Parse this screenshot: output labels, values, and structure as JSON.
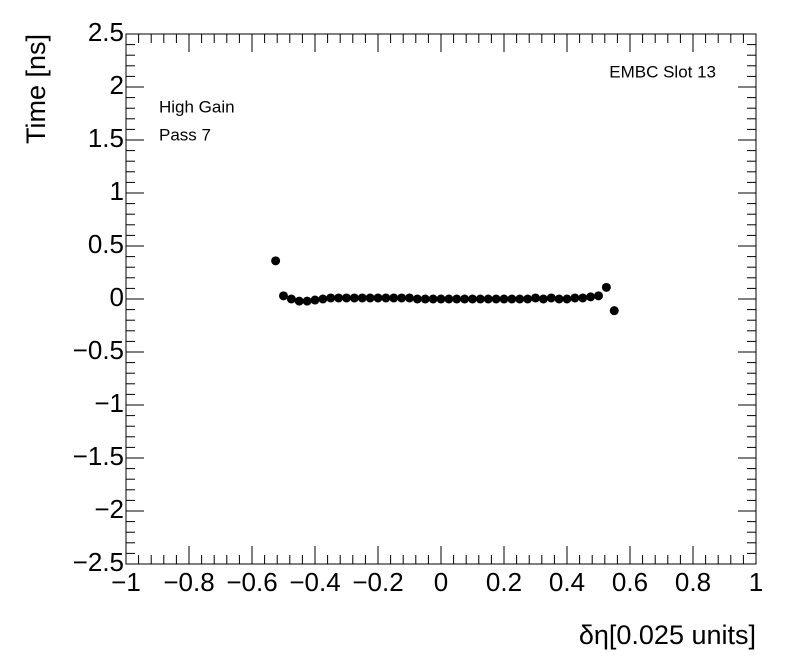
{
  "chart_data": {
    "type": "scatter",
    "x_label": "δη[0.025 units]",
    "y_label": "Time [ns]",
    "annotations": [
      "EMBC Slot 13",
      "High Gain",
      "Pass 7"
    ],
    "xlim": [
      -1,
      1
    ],
    "ylim": [
      -2.5,
      2.5
    ],
    "xticks": [
      {
        "value": -1,
        "label": "−1"
      },
      {
        "value": -0.8,
        "label": "−0.8"
      },
      {
        "value": -0.6,
        "label": "−0.6"
      },
      {
        "value": -0.4,
        "label": "−0.4"
      },
      {
        "value": -0.2,
        "label": "−0.2"
      },
      0,
      0.2,
      0.4,
      0.6,
      0.8,
      1
    ],
    "yticks": [
      {
        "value": -2.5,
        "label": "−2.5"
      },
      {
        "value": -2,
        "label": "−2"
      },
      {
        "value": -1.5,
        "label": "−1.5"
      },
      {
        "value": -1,
        "label": "−1"
      },
      {
        "value": -0.5,
        "label": "−0.5"
      },
      0,
      0.5,
      1,
      1.5,
      2,
      2.5
    ],
    "color": "#000000",
    "series": [
      {
        "x": [
          -0.525,
          -0.5,
          -0.475,
          -0.45,
          -0.425,
          -0.4,
          -0.375,
          -0.35,
          -0.325,
          -0.3,
          -0.275,
          -0.25,
          -0.225,
          -0.2,
          -0.175,
          -0.15,
          -0.125,
          -0.1,
          -0.075,
          -0.05,
          -0.025,
          0,
          0.025,
          0.05,
          0.075,
          0.1,
          0.125,
          0.15,
          0.175,
          0.2,
          0.225,
          0.25,
          0.275,
          0.3,
          0.325,
          0.35,
          0.375,
          0.4,
          0.425,
          0.45,
          0.475,
          0.5,
          0.525,
          0.55
        ],
        "values": [
          0.36,
          0.03,
          0.0,
          -0.02,
          -0.02,
          -0.01,
          0.0,
          0.01,
          0.01,
          0.01,
          0.01,
          0.01,
          0.01,
          0.01,
          0.01,
          0.01,
          0.01,
          0.01,
          0.0,
          0.0,
          0.0,
          0.0,
          0.0,
          0.0,
          0.0,
          0.0,
          0.0,
          0.0,
          0.0,
          0.0,
          0.0,
          0.0,
          0.0,
          0.01,
          0.0,
          0.01,
          0.0,
          0.0,
          0.01,
          0.01,
          0.02,
          0.03,
          0.11,
          -0.11
        ]
      }
    ]
  }
}
